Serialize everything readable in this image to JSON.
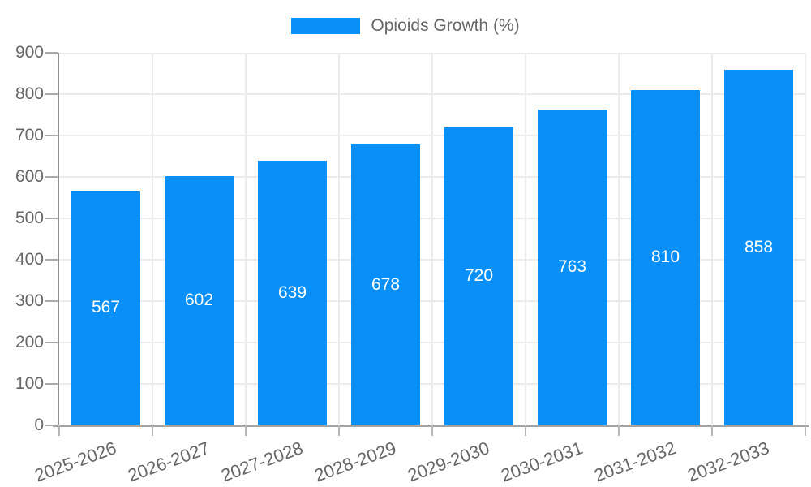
{
  "legend": {
    "label": "Opioids Growth (%)"
  },
  "chart_data": {
    "type": "bar",
    "title": "",
    "categories": [
      "2025-2026",
      "2026-2027",
      "2027-2028",
      "2028-2029",
      "2029-2030",
      "2030-2031",
      "2031-2032",
      "2032-2033"
    ],
    "values": [
      567,
      602,
      639,
      678,
      720,
      763,
      810,
      858
    ],
    "series_label": "Opioids Growth (%)",
    "xlabel": "",
    "ylabel": "",
    "ylim": [
      0,
      900
    ],
    "yticks": [
      0,
      100,
      200,
      300,
      400,
      500,
      600,
      700,
      800,
      900
    ],
    "grid": true,
    "legend_position": "top",
    "value_label_position": "inside-center",
    "bar_color": "#0990f8",
    "value_label_color": "#ffffff",
    "axis_text_color": "#666666",
    "gridline_color": "#ebebeb"
  }
}
